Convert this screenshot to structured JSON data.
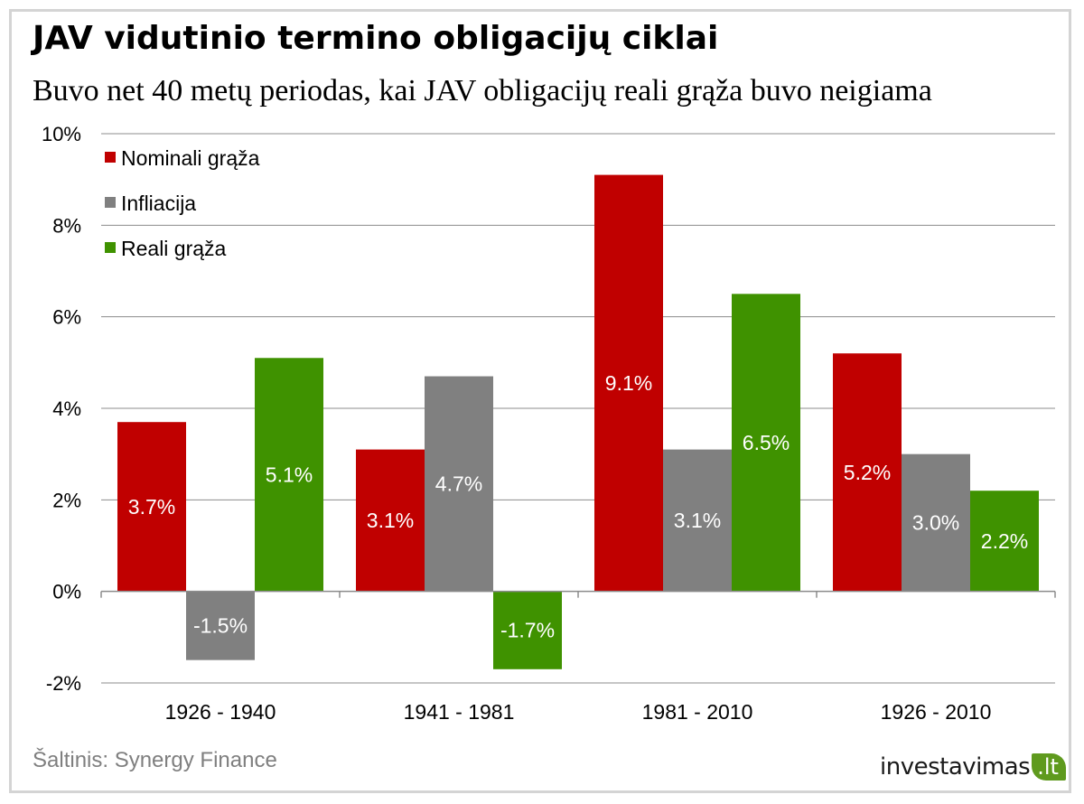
{
  "header": {
    "title": "JAV vidutinio termino obligacijų ciklai",
    "subtitle": "Buvo net 40 metų periodas, kai JAV obligacijų  reali grąža buvo neigiama"
  },
  "footer": {
    "source": "Šaltinis: Synergy Finance",
    "logo_main": "investavimas",
    "logo_tld": ".lt"
  },
  "chart_data": {
    "type": "bar",
    "title": "JAV vidutinio termino obligacijų ciklai",
    "subtitle": "Buvo net 40 metų periodas, kai JAV obligacijų  reali grąža buvo neigiama",
    "xlabel": "",
    "ylabel": "",
    "ylim": [
      -2,
      10
    ],
    "yticks": [
      -2,
      0,
      2,
      4,
      6,
      8,
      10
    ],
    "ytick_labels": [
      "-2%",
      "0%",
      "2%",
      "4%",
      "6%",
      "8%",
      "10%"
    ],
    "grid": true,
    "legend_position": "top-left",
    "categories": [
      "1926 - 1940",
      "1941 - 1981",
      "1981 - 2010",
      "1926 - 2010"
    ],
    "series": [
      {
        "name": "Nominali grąža",
        "color": "#c00000",
        "values": [
          3.7,
          3.1,
          9.1,
          5.2
        ],
        "labels": [
          "3.7%",
          "3.1%",
          "9.1%",
          "5.2%"
        ]
      },
      {
        "name": "Infliacija",
        "color": "#808080",
        "values": [
          -1.5,
          4.7,
          3.1,
          3.0
        ],
        "labels": [
          "-1.5%",
          "4.7%",
          "3.1%",
          "3.0%"
        ]
      },
      {
        "name": "Reali grąža",
        "color": "#3f9200",
        "values": [
          5.1,
          -1.7,
          6.5,
          2.2
        ],
        "labels": [
          "5.1%",
          "-1.7%",
          "6.5%",
          "2.2%"
        ]
      }
    ]
  }
}
